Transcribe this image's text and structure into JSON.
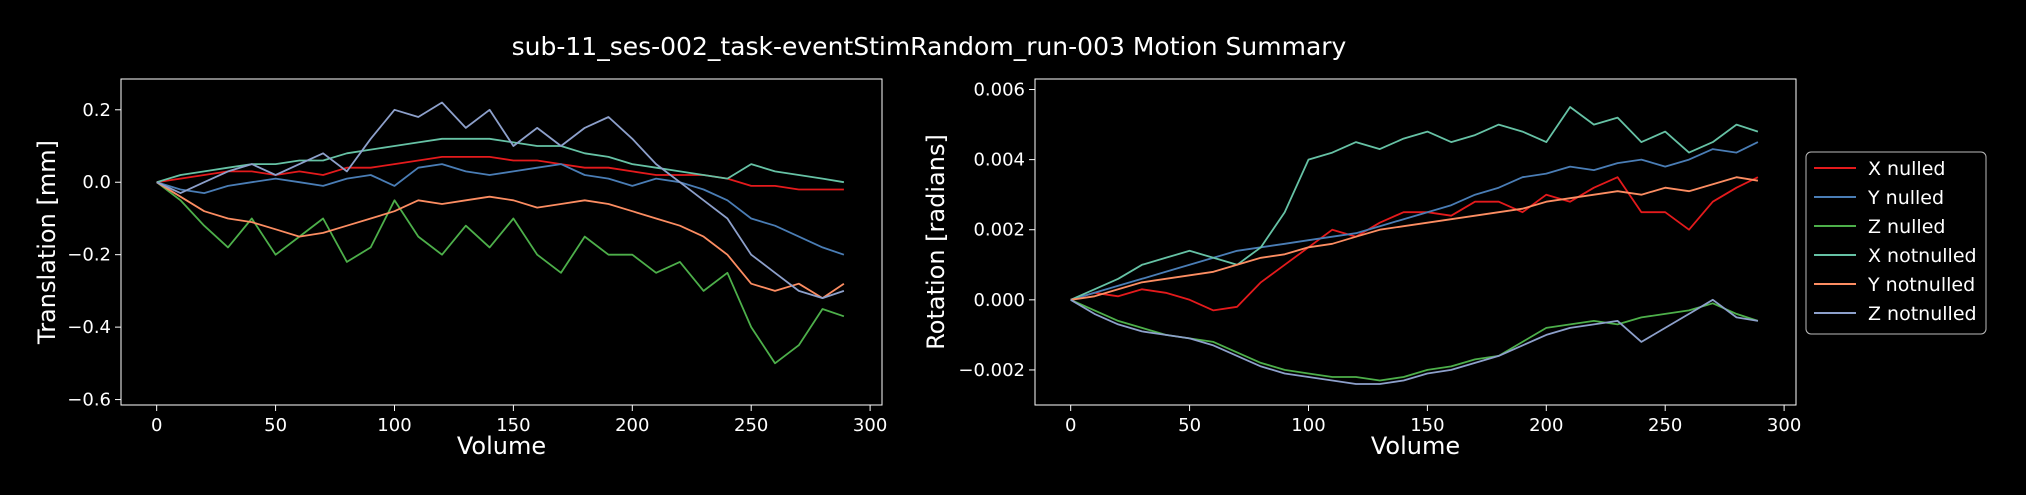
{
  "figure": {
    "title": "sub-11_ses-002_task-eventStimRandom_run-003 Motion Summary",
    "background": "#000000",
    "text_color": "#ffffff"
  },
  "legend": {
    "placement": "right, outside the rotation plot",
    "entries": [
      {
        "label": "X nulled",
        "color": "#e41a1c"
      },
      {
        "label": "Y nulled",
        "color": "#4a7db5"
      },
      {
        "label": "Z nulled",
        "color": "#4daf4a"
      },
      {
        "label": "X notnulled",
        "color": "#66c2a5"
      },
      {
        "label": "Y notnulled",
        "color": "#fc8d62"
      },
      {
        "label": "Z notnulled",
        "color": "#8da0cb"
      }
    ]
  },
  "chart_data": [
    {
      "type": "line",
      "xlabel": "Volume",
      "ylabel": "Translation [mm]",
      "xlim": [
        -15,
        305
      ],
      "ylim": [
        -0.615,
        0.285
      ],
      "xticks": [
        0,
        50,
        100,
        150,
        200,
        250,
        300
      ],
      "yticks": [
        -0.6,
        -0.4,
        -0.2,
        0.0,
        0.2
      ],
      "ytick_labels": [
        "−0.6",
        "−0.4",
        "−0.2",
        "0.0",
        "0.2"
      ],
      "grid": false,
      "series": [
        {
          "name": "X nulled",
          "color": "#e41a1c",
          "x": [
            0,
            10,
            20,
            30,
            40,
            50,
            60,
            70,
            80,
            90,
            100,
            110,
            120,
            130,
            140,
            150,
            160,
            170,
            180,
            190,
            200,
            210,
            220,
            230,
            240,
            250,
            260,
            270,
            280,
            289
          ],
          "y": [
            0,
            0.01,
            0.02,
            0.03,
            0.03,
            0.02,
            0.03,
            0.02,
            0.04,
            0.04,
            0.05,
            0.06,
            0.07,
            0.07,
            0.07,
            0.06,
            0.06,
            0.05,
            0.04,
            0.04,
            0.03,
            0.02,
            0.02,
            0.02,
            0.01,
            -0.01,
            -0.01,
            -0.02,
            -0.02,
            -0.02
          ]
        },
        {
          "name": "Y nulled",
          "color": "#4a7db5",
          "x": [
            0,
            10,
            20,
            30,
            40,
            50,
            60,
            70,
            80,
            90,
            100,
            110,
            120,
            130,
            140,
            150,
            160,
            170,
            180,
            190,
            200,
            210,
            220,
            230,
            240,
            250,
            260,
            270,
            280,
            289
          ],
          "y": [
            0,
            -0.02,
            -0.03,
            -0.01,
            0,
            0.01,
            0,
            -0.01,
            0.01,
            0.02,
            -0.01,
            0.04,
            0.05,
            0.03,
            0.02,
            0.03,
            0.04,
            0.05,
            0.02,
            0.01,
            -0.01,
            0.01,
            0,
            -0.02,
            -0.05,
            -0.1,
            -0.12,
            -0.15,
            -0.18,
            -0.2
          ]
        },
        {
          "name": "Z nulled",
          "color": "#4daf4a",
          "x": [
            0,
            10,
            20,
            30,
            40,
            50,
            60,
            70,
            80,
            90,
            100,
            110,
            120,
            130,
            140,
            150,
            160,
            170,
            180,
            190,
            200,
            210,
            220,
            230,
            240,
            250,
            260,
            270,
            280,
            289
          ],
          "y": [
            0,
            -0.05,
            -0.12,
            -0.18,
            -0.1,
            -0.2,
            -0.15,
            -0.1,
            -0.22,
            -0.18,
            -0.05,
            -0.15,
            -0.2,
            -0.12,
            -0.18,
            -0.1,
            -0.2,
            -0.25,
            -0.15,
            -0.2,
            -0.2,
            -0.25,
            -0.22,
            -0.3,
            -0.25,
            -0.4,
            -0.5,
            -0.45,
            -0.35,
            -0.37
          ]
        },
        {
          "name": "X notnulled",
          "color": "#66c2a5",
          "x": [
            0,
            10,
            20,
            30,
            40,
            50,
            60,
            70,
            80,
            90,
            100,
            110,
            120,
            130,
            140,
            150,
            160,
            170,
            180,
            190,
            200,
            210,
            220,
            230,
            240,
            250,
            260,
            270,
            280,
            289
          ],
          "y": [
            0,
            0.02,
            0.03,
            0.04,
            0.05,
            0.05,
            0.06,
            0.06,
            0.08,
            0.09,
            0.1,
            0.11,
            0.12,
            0.12,
            0.12,
            0.11,
            0.1,
            0.1,
            0.08,
            0.07,
            0.05,
            0.04,
            0.03,
            0.02,
            0.01,
            0.05,
            0.03,
            0.02,
            0.01,
            0
          ]
        },
        {
          "name": "Y notnulled",
          "color": "#fc8d62",
          "x": [
            0,
            10,
            20,
            30,
            40,
            50,
            60,
            70,
            80,
            90,
            100,
            110,
            120,
            130,
            140,
            150,
            160,
            170,
            180,
            190,
            200,
            210,
            220,
            230,
            240,
            250,
            260,
            270,
            280,
            289
          ],
          "y": [
            0,
            -0.04,
            -0.08,
            -0.1,
            -0.11,
            -0.13,
            -0.15,
            -0.14,
            -0.12,
            -0.1,
            -0.08,
            -0.05,
            -0.06,
            -0.05,
            -0.04,
            -0.05,
            -0.07,
            -0.06,
            -0.05,
            -0.06,
            -0.08,
            -0.1,
            -0.12,
            -0.15,
            -0.2,
            -0.28,
            -0.3,
            -0.28,
            -0.32,
            -0.28
          ]
        },
        {
          "name": "Z notnulled",
          "color": "#8da0cb",
          "x": [
            0,
            10,
            20,
            30,
            40,
            50,
            60,
            70,
            80,
            90,
            100,
            110,
            120,
            130,
            140,
            150,
            160,
            170,
            180,
            190,
            200,
            210,
            220,
            230,
            240,
            250,
            260,
            270,
            280,
            289
          ],
          "y": [
            0,
            -0.03,
            0,
            0.03,
            0.05,
            0.02,
            0.05,
            0.08,
            0.03,
            0.12,
            0.2,
            0.18,
            0.22,
            0.15,
            0.2,
            0.1,
            0.15,
            0.1,
            0.15,
            0.18,
            0.12,
            0.05,
            0,
            -0.05,
            -0.1,
            -0.2,
            -0.25,
            -0.3,
            -0.32,
            -0.3
          ]
        }
      ]
    },
    {
      "type": "line",
      "xlabel": "Volume",
      "ylabel": "Rotation [radians]",
      "xlim": [
        -15,
        305
      ],
      "ylim": [
        -0.003,
        0.0063
      ],
      "xticks": [
        0,
        50,
        100,
        150,
        200,
        250,
        300
      ],
      "yticks": [
        -0.002,
        0.0,
        0.002,
        0.004,
        0.006
      ],
      "ytick_labels": [
        "−0.002",
        "0.000",
        "0.002",
        "0.004",
        "0.006"
      ],
      "grid": false,
      "series": [
        {
          "name": "X nulled",
          "color": "#e41a1c",
          "x": [
            0,
            10,
            20,
            30,
            40,
            50,
            60,
            70,
            80,
            90,
            100,
            110,
            120,
            130,
            140,
            150,
            160,
            170,
            180,
            190,
            200,
            210,
            220,
            230,
            240,
            250,
            260,
            270,
            280,
            289
          ],
          "y": [
            0,
            0.0002,
            0.0001,
            0.0003,
            0.0002,
            0,
            -0.0003,
            -0.0002,
            0.0005,
            0.001,
            0.0015,
            0.002,
            0.0018,
            0.0022,
            0.0025,
            0.0025,
            0.0024,
            0.0028,
            0.0028,
            0.0025,
            0.003,
            0.0028,
            0.0032,
            0.0035,
            0.0025,
            0.0025,
            0.002,
            0.0028,
            0.0032,
            0.0035
          ]
        },
        {
          "name": "Y nulled",
          "color": "#4a7db5",
          "x": [
            0,
            10,
            20,
            30,
            40,
            50,
            60,
            70,
            80,
            90,
            100,
            110,
            120,
            130,
            140,
            150,
            160,
            170,
            180,
            190,
            200,
            210,
            220,
            230,
            240,
            250,
            260,
            270,
            280,
            289
          ],
          "y": [
            0,
            0.0002,
            0.0004,
            0.0006,
            0.0008,
            0.001,
            0.0012,
            0.0014,
            0.0015,
            0.0016,
            0.0017,
            0.0018,
            0.0019,
            0.0021,
            0.0023,
            0.0025,
            0.0027,
            0.003,
            0.0032,
            0.0035,
            0.0036,
            0.0038,
            0.0037,
            0.0039,
            0.004,
            0.0038,
            0.004,
            0.0043,
            0.0042,
            0.0045
          ]
        },
        {
          "name": "Z nulled",
          "color": "#4daf4a",
          "x": [
            0,
            10,
            20,
            30,
            40,
            50,
            60,
            70,
            80,
            90,
            100,
            110,
            120,
            130,
            140,
            150,
            160,
            170,
            180,
            190,
            200,
            210,
            220,
            230,
            240,
            250,
            260,
            270,
            280,
            289
          ],
          "y": [
            0,
            -0.0003,
            -0.0006,
            -0.0008,
            -0.001,
            -0.0011,
            -0.0012,
            -0.0015,
            -0.0018,
            -0.002,
            -0.0021,
            -0.0022,
            -0.0022,
            -0.0023,
            -0.0022,
            -0.002,
            -0.0019,
            -0.0017,
            -0.0016,
            -0.0012,
            -0.0008,
            -0.0007,
            -0.0006,
            -0.0007,
            -0.0005,
            -0.0004,
            -0.0003,
            -0.0001,
            -0.0004,
            -0.0006
          ]
        },
        {
          "name": "X notnulled",
          "color": "#66c2a5",
          "x": [
            0,
            10,
            20,
            30,
            40,
            50,
            60,
            70,
            80,
            90,
            100,
            110,
            120,
            130,
            140,
            150,
            160,
            170,
            180,
            190,
            200,
            210,
            220,
            230,
            240,
            250,
            260,
            270,
            280,
            289
          ],
          "y": [
            0,
            0.0003,
            0.0006,
            0.001,
            0.0012,
            0.0014,
            0.0012,
            0.001,
            0.0015,
            0.0025,
            0.004,
            0.0042,
            0.0045,
            0.0043,
            0.0046,
            0.0048,
            0.0045,
            0.0047,
            0.005,
            0.0048,
            0.0045,
            0.0055,
            0.005,
            0.0052,
            0.0045,
            0.0048,
            0.0042,
            0.0045,
            0.005,
            0.0048
          ]
        },
        {
          "name": "Y notnulled",
          "color": "#fc8d62",
          "x": [
            0,
            10,
            20,
            30,
            40,
            50,
            60,
            70,
            80,
            90,
            100,
            110,
            120,
            130,
            140,
            150,
            160,
            170,
            180,
            190,
            200,
            210,
            220,
            230,
            240,
            250,
            260,
            270,
            280,
            289
          ],
          "y": [
            0,
            0.0001,
            0.0003,
            0.0005,
            0.0006,
            0.0007,
            0.0008,
            0.001,
            0.0012,
            0.0013,
            0.0015,
            0.0016,
            0.0018,
            0.002,
            0.0021,
            0.0022,
            0.0023,
            0.0024,
            0.0025,
            0.0026,
            0.0028,
            0.0029,
            0.003,
            0.0031,
            0.003,
            0.0032,
            0.0031,
            0.0033,
            0.0035,
            0.0034
          ]
        },
        {
          "name": "Z notnulled",
          "color": "#8da0cb",
          "x": [
            0,
            10,
            20,
            30,
            40,
            50,
            60,
            70,
            80,
            90,
            100,
            110,
            120,
            130,
            140,
            150,
            160,
            170,
            180,
            190,
            200,
            210,
            220,
            230,
            240,
            250,
            260,
            270,
            280,
            289
          ],
          "y": [
            0,
            -0.0004,
            -0.0007,
            -0.0009,
            -0.001,
            -0.0011,
            -0.0013,
            -0.0016,
            -0.0019,
            -0.0021,
            -0.0022,
            -0.0023,
            -0.0024,
            -0.0024,
            -0.0023,
            -0.0021,
            -0.002,
            -0.0018,
            -0.0016,
            -0.0013,
            -0.001,
            -0.0008,
            -0.0007,
            -0.0006,
            -0.0012,
            -0.0008,
            -0.0004,
            0,
            -0.0005,
            -0.0006
          ]
        }
      ]
    }
  ]
}
